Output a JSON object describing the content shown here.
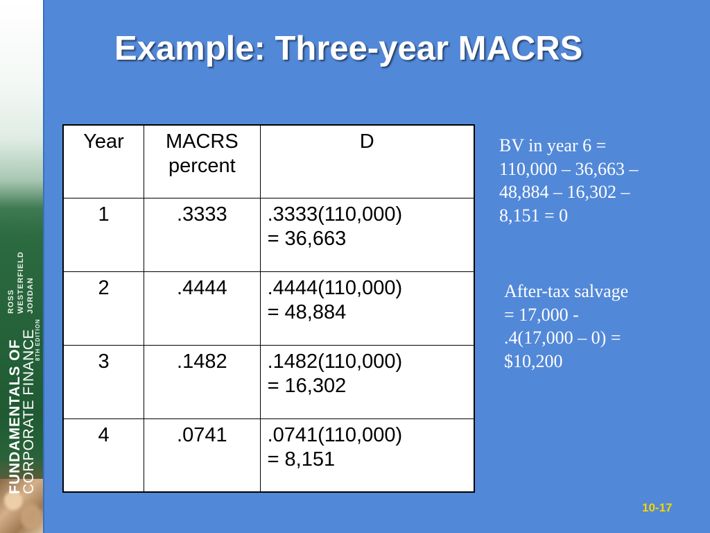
{
  "book_spine": {
    "title_line1": "FUNDAMENTALS OF",
    "title_line2": "CORPORATE FINANCE",
    "author1": "ROSS",
    "author2": "WESTERFIELD",
    "author3": "JORDAN",
    "edition": "8TH EDITION"
  },
  "slide": {
    "title": "Example: Three-year MACRS",
    "number": "10-17"
  },
  "table": {
    "headers": [
      [
        "Year"
      ],
      [
        "MACRS",
        "percent"
      ],
      [
        "D"
      ]
    ],
    "rows": [
      {
        "year": "1",
        "percent": ".3333",
        "d_line1": ".3333(110,000)",
        "d_line2": "= 36,663"
      },
      {
        "year": "2",
        "percent": ".4444",
        "d_line1": ".4444(110,000)",
        "d_line2": "= 48,884"
      },
      {
        "year": "3",
        "percent": ".1482",
        "d_line1": ".1482(110,000)",
        "d_line2": "= 16,302"
      },
      {
        "year": "4",
        "percent": ".0741",
        "d_line1": ".0741(110,000)",
        "d_line2": "= 8,151"
      }
    ]
  },
  "notes": {
    "bv": [
      "BV in year 6 =",
      "110,000 – 36,663 –",
      "48,884 – 16,302 –",
      "8,151 = 0"
    ],
    "salvage": [
      "After-tax salvage",
      "= 17,000 -",
      ".4(17,000 – 0) =",
      "$10,200"
    ]
  },
  "colors": {
    "background": "#5288d8",
    "title_text": "#ffffff",
    "slide_number": "#f5d400"
  }
}
